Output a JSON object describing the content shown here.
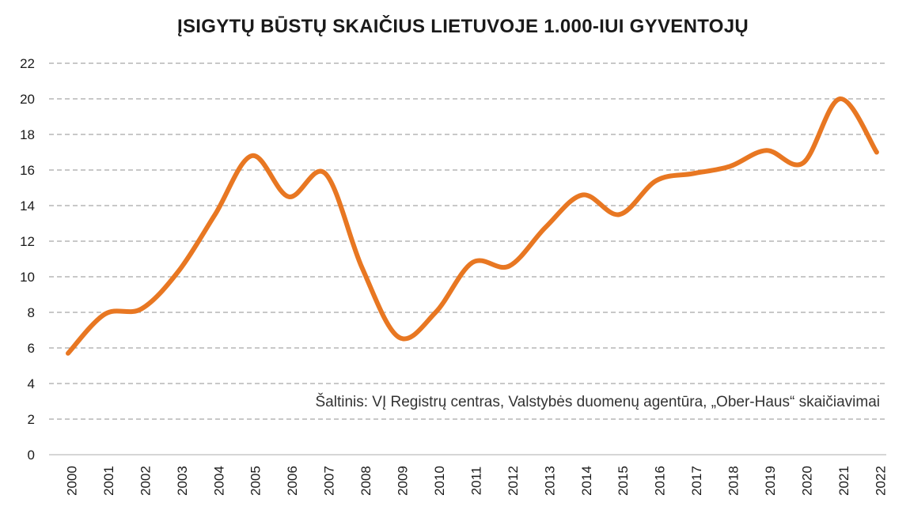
{
  "chart_data": {
    "type": "line",
    "title": "ĮSIGYTŲ BŪSTŲ SKAIČIUS LIETUVOJE 1.000-IUI GYVENTOJŲ",
    "source_note": "Šaltinis: VĮ Registrų centras, Valstybės duomenų agentūra, „Ober-Haus“ skaičiavimai",
    "xlabel": "",
    "ylabel": "",
    "x": [
      "2000",
      "2001",
      "2002",
      "2003",
      "2004",
      "2005",
      "2006",
      "2007",
      "2008",
      "2009",
      "2010",
      "2011",
      "2012",
      "2013",
      "2014",
      "2015",
      "2016",
      "2017",
      "2018",
      "2019",
      "2020",
      "2021",
      "2022"
    ],
    "series": [
      {
        "values": [
          5.7,
          7.9,
          8.2,
          10.3,
          13.5,
          16.8,
          14.5,
          15.8,
          10.5,
          6.6,
          8.0,
          10.8,
          10.6,
          12.8,
          14.6,
          13.5,
          15.4,
          15.8,
          16.2,
          17.1,
          16.4,
          20.0,
          17.0
        ],
        "color": "#e87722"
      }
    ],
    "ylim": [
      0,
      22
    ],
    "yticks": [
      0,
      2,
      4,
      6,
      8,
      10,
      12,
      14,
      16,
      18,
      20,
      22
    ],
    "grid": true,
    "grid_style": "dashed",
    "legend": "none"
  }
}
